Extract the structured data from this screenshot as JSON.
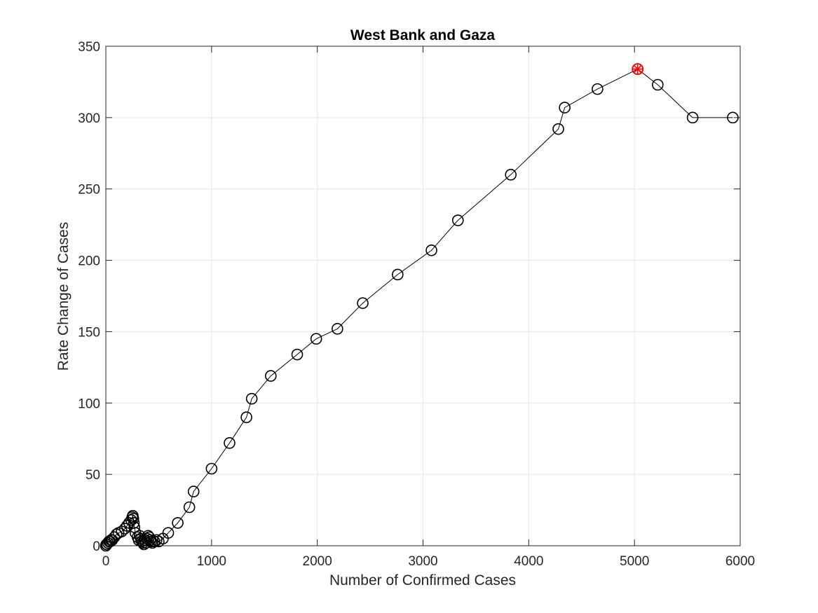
{
  "chart_data": {
    "type": "line",
    "title": "West Bank and Gaza",
    "xlabel": "Number of Confirmed Cases",
    "ylabel": "Rate Change of Cases",
    "xlim": [
      0,
      6000
    ],
    "ylim": [
      0,
      350
    ],
    "xticks": [
      "0",
      "1000",
      "2000",
      "3000",
      "4000",
      "5000",
      "6000"
    ],
    "yticks": [
      "0",
      "50",
      "100",
      "150",
      "200",
      "250",
      "300",
      "350"
    ],
    "grid": true,
    "marker": "open-circle",
    "line_color": "#000000",
    "marker_color": "#000000",
    "highlight_color": "#ff0000",
    "series": [
      {
        "x": [
          0,
          5,
          10,
          20,
          30,
          40,
          50,
          60,
          80,
          100,
          120,
          150,
          180,
          200,
          220,
          240,
          250,
          255,
          260,
          265,
          270,
          280,
          300,
          310,
          320,
          330,
          340,
          350,
          360,
          370,
          380,
          390,
          400,
          410,
          420,
          430,
          440,
          460,
          480,
          500,
          540,
          590,
          680,
          790,
          830,
          1000,
          1170,
          1330,
          1380,
          1560,
          1810,
          1990,
          2190,
          2430,
          2760,
          3080,
          3330,
          3830,
          4280,
          4340,
          4650,
          5030,
          5220,
          5550,
          5930
        ],
        "y": [
          0,
          1,
          1,
          2,
          3,
          3,
          4,
          4,
          6,
          8,
          9,
          10,
          12,
          14,
          16,
          18,
          20,
          21,
          19,
          16,
          13,
          9,
          6,
          4,
          7,
          5,
          3,
          2,
          1,
          4,
          2,
          5,
          7,
          6,
          4,
          3,
          2,
          3,
          4,
          3,
          5,
          9,
          16,
          27,
          38,
          54,
          72,
          90,
          103,
          119,
          134,
          145,
          152,
          170,
          190,
          207,
          228,
          260,
          292,
          307,
          320,
          334,
          323,
          300,
          300
        ]
      }
    ],
    "highlight_point": {
      "x": 5030,
      "y": 334
    }
  }
}
